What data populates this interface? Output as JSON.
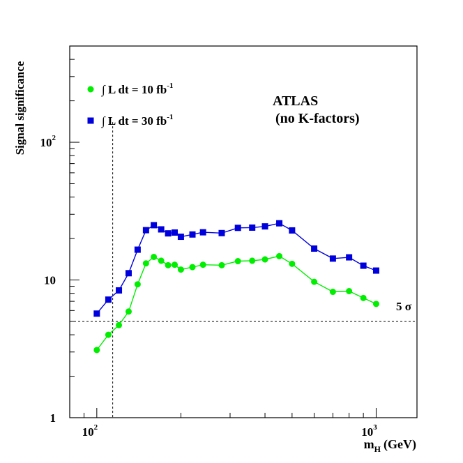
{
  "chart_data": {
    "type": "line",
    "xlabel": "m",
    "xlabel_sub": "H",
    "xlabel_unit": "(GeV)",
    "ylabel": "Signal significance",
    "xscale": "log",
    "yscale": "log",
    "xlim": [
      80,
      1400
    ],
    "ylim": [
      1,
      500
    ],
    "x_ticks": [
      {
        "value": 100,
        "base": "10",
        "exp": "2"
      },
      {
        "value": 1000,
        "base": "10",
        "exp": "3"
      }
    ],
    "y_ticks": [
      {
        "value": 1,
        "label": "1"
      },
      {
        "value": 10,
        "label": "10"
      },
      {
        "value": 100,
        "base": "10",
        "exp": "2"
      }
    ],
    "reference_lines": {
      "horizontal": {
        "value": 5,
        "label": "5 σ"
      },
      "vertical": {
        "value": 114
      }
    },
    "annotation": {
      "line1": "ATLAS",
      "line2": "(no K-factors)"
    },
    "legend_prefix": "∫ L dt = ",
    "series": [
      {
        "name": "10 fb-1",
        "legend_value": "10 fb",
        "legend_exp": "-1",
        "color": "#00ee00",
        "marker": "circle",
        "x": [
          100,
          110,
          120,
          130,
          140,
          150,
          160,
          170,
          180,
          190,
          200,
          220,
          240,
          280,
          320,
          360,
          400,
          450,
          500,
          600,
          700,
          800,
          900,
          1000
        ],
        "y": [
          3.1,
          4.0,
          4.7,
          5.9,
          9.3,
          13.2,
          14.7,
          13.8,
          12.8,
          12.9,
          11.9,
          12.4,
          12.9,
          12.8,
          13.7,
          13.8,
          14.1,
          14.9,
          13.1,
          9.7,
          8.2,
          8.3,
          7.4,
          6.7
        ]
      },
      {
        "name": "30 fb-1",
        "legend_value": "30 fb",
        "legend_exp": "-1",
        "color": "#0000dd",
        "marker": "square",
        "x": [
          100,
          110,
          120,
          130,
          140,
          150,
          160,
          170,
          180,
          190,
          200,
          220,
          240,
          280,
          320,
          360,
          400,
          450,
          500,
          600,
          700,
          800,
          900,
          1000
        ],
        "y": [
          5.7,
          7.2,
          8.4,
          11.2,
          16.6,
          23.0,
          25.0,
          23.3,
          21.8,
          22.1,
          20.6,
          21.4,
          22.2,
          21.9,
          23.9,
          24.0,
          24.5,
          25.8,
          22.9,
          16.9,
          14.3,
          14.6,
          12.7,
          11.7
        ]
      }
    ]
  }
}
